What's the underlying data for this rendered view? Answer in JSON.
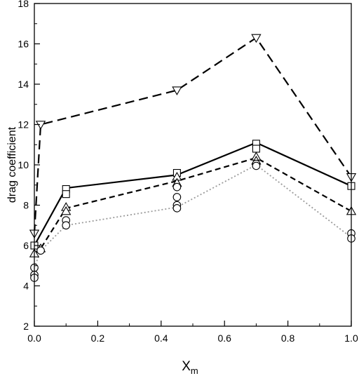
{
  "chart_data": {
    "type": "scatter",
    "title": "",
    "xlabel": "X",
    "xlabel_subscript": "m",
    "ylabel": "drag coefficient",
    "xlim": [
      0.0,
      1.0
    ],
    "ylim": [
      2,
      18
    ],
    "xticks": [
      0.0,
      0.2,
      0.4,
      0.6,
      0.8,
      1.0
    ],
    "xtick_labels": [
      "0.0",
      "0.2",
      "0.4",
      "0.6",
      "0.8",
      "1.0"
    ],
    "yticks": [
      2,
      4,
      6,
      8,
      10,
      12,
      14,
      16,
      18
    ],
    "ytick_labels": [
      "2",
      "4",
      "6",
      "8",
      "10",
      "12",
      "14",
      "16",
      "18"
    ],
    "grid": false,
    "series": [
      {
        "marker": "triangle-down",
        "line_style": "long-dash",
        "line": [
          [
            0.0,
            6.6
          ],
          [
            0.02,
            12.0
          ],
          [
            0.45,
            13.7
          ],
          [
            0.7,
            16.3
          ],
          [
            1.0,
            9.4
          ]
        ],
        "points": [
          [
            0.0,
            6.6
          ],
          [
            0.02,
            12.0
          ],
          [
            0.45,
            13.7
          ],
          [
            0.7,
            16.3
          ],
          [
            1.0,
            9.4
          ]
        ]
      },
      {
        "marker": "square",
        "line_style": "solid",
        "line": [
          [
            0.0,
            6.0
          ],
          [
            0.1,
            8.85
          ],
          [
            0.45,
            9.5
          ],
          [
            0.7,
            11.1
          ],
          [
            1.0,
            8.95
          ]
        ],
        "points": [
          [
            0.0,
            6.0
          ],
          [
            0.1,
            8.8
          ],
          [
            0.1,
            8.55
          ],
          [
            0.45,
            9.6
          ],
          [
            0.7,
            11.05
          ],
          [
            0.7,
            10.8
          ],
          [
            1.0,
            8.95
          ]
        ]
      },
      {
        "marker": "triangle-up",
        "line_style": "short-dash",
        "line": [
          [
            0.0,
            5.6
          ],
          [
            0.02,
            5.85
          ],
          [
            0.1,
            7.85
          ],
          [
            0.45,
            9.2
          ],
          [
            0.7,
            10.35
          ],
          [
            1.0,
            7.7
          ]
        ],
        "points": [
          [
            0.0,
            5.6
          ],
          [
            0.02,
            5.85
          ],
          [
            0.1,
            7.9
          ],
          [
            0.1,
            7.7
          ],
          [
            0.45,
            9.4
          ],
          [
            0.45,
            9.1
          ],
          [
            0.7,
            10.4
          ],
          [
            0.7,
            10.2
          ],
          [
            1.0,
            7.7
          ]
        ]
      },
      {
        "marker": "circle",
        "line_style": "dotted",
        "line": [
          [
            0.0,
            4.9
          ],
          [
            0.02,
            5.75
          ],
          [
            0.1,
            7.0
          ],
          [
            0.45,
            7.9
          ],
          [
            0.7,
            10.0
          ],
          [
            1.0,
            6.4
          ]
        ],
        "points": [
          [
            0.0,
            4.9
          ],
          [
            0.0,
            4.55
          ],
          [
            0.0,
            4.4
          ],
          [
            0.02,
            5.75
          ],
          [
            0.1,
            7.25
          ],
          [
            0.1,
            7.0
          ],
          [
            0.45,
            8.9
          ],
          [
            0.45,
            8.4
          ],
          [
            0.45,
            8.0
          ],
          [
            0.45,
            7.85
          ],
          [
            0.7,
            10.05
          ],
          [
            0.7,
            9.95
          ],
          [
            1.0,
            6.6
          ],
          [
            1.0,
            6.35
          ]
        ]
      }
    ]
  }
}
